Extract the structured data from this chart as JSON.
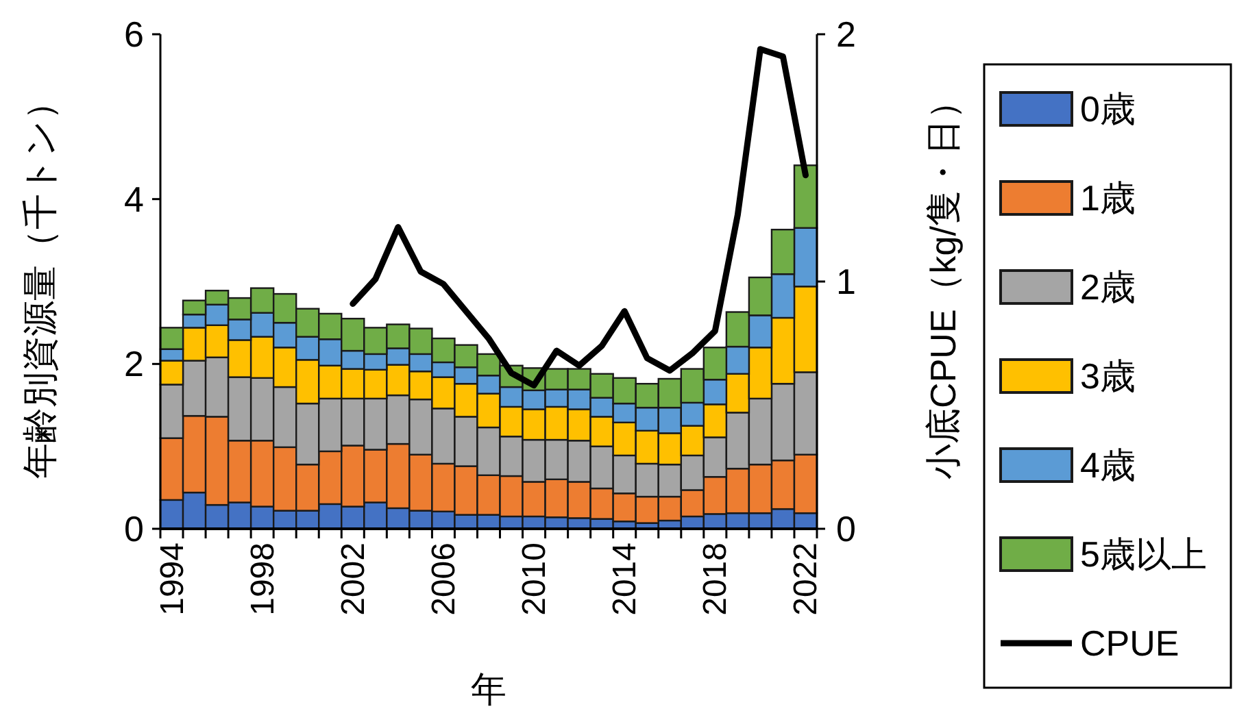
{
  "chart_data": {
    "type": "bar",
    "stacked": true,
    "xlabel": "年",
    "ylabel": "年齢別資源量（千トン）",
    "y2label": "小底CPUE（kg/隻・日）",
    "categories": [
      "1994",
      null,
      null,
      null,
      "1998",
      null,
      null,
      null,
      "2002",
      null,
      null,
      null,
      "2006",
      null,
      null,
      null,
      "2010",
      null,
      null,
      null,
      "2014",
      null,
      null,
      null,
      "2018",
      null,
      null,
      null,
      "2022"
    ],
    "series": [
      {
        "name": "0歳",
        "color": "#4472c4",
        "values": [
          0.35,
          0.44,
          0.29,
          0.32,
          0.27,
          0.22,
          0.22,
          0.3,
          0.27,
          0.32,
          0.25,
          0.22,
          0.21,
          0.17,
          0.17,
          0.15,
          0.15,
          0.14,
          0.13,
          0.12,
          0.09,
          0.07,
          0.1,
          0.15,
          0.18,
          0.19,
          0.19,
          0.24,
          0.19
        ]
      },
      {
        "name": "1歳",
        "color": "#ed7d31",
        "values": [
          0.75,
          0.93,
          1.07,
          0.75,
          0.8,
          0.77,
          0.56,
          0.64,
          0.74,
          0.64,
          0.78,
          0.68,
          0.58,
          0.59,
          0.48,
          0.49,
          0.42,
          0.46,
          0.44,
          0.37,
          0.34,
          0.32,
          0.29,
          0.32,
          0.45,
          0.54,
          0.59,
          0.59,
          0.71
        ]
      },
      {
        "name": "2歳",
        "color": "#a5a5a5",
        "values": [
          0.65,
          0.67,
          0.72,
          0.77,
          0.76,
          0.73,
          0.74,
          0.64,
          0.57,
          0.62,
          0.59,
          0.67,
          0.67,
          0.6,
          0.58,
          0.48,
          0.51,
          0.48,
          0.5,
          0.51,
          0.46,
          0.4,
          0.39,
          0.42,
          0.48,
          0.68,
          0.8,
          0.93,
          1.0
        ]
      },
      {
        "name": "3歳",
        "color": "#ffc000",
        "values": [
          0.29,
          0.4,
          0.39,
          0.45,
          0.5,
          0.48,
          0.53,
          0.4,
          0.36,
          0.35,
          0.37,
          0.34,
          0.38,
          0.4,
          0.41,
          0.36,
          0.37,
          0.4,
          0.38,
          0.36,
          0.4,
          0.4,
          0.38,
          0.36,
          0.4,
          0.47,
          0.62,
          0.8,
          1.04
        ]
      },
      {
        "name": "4歳",
        "color": "#5b9bd5",
        "values": [
          0.14,
          0.16,
          0.25,
          0.25,
          0.29,
          0.3,
          0.28,
          0.32,
          0.22,
          0.19,
          0.2,
          0.21,
          0.18,
          0.2,
          0.22,
          0.24,
          0.23,
          0.21,
          0.24,
          0.23,
          0.23,
          0.28,
          0.31,
          0.28,
          0.3,
          0.33,
          0.39,
          0.53,
          0.71
        ]
      },
      {
        "name": "5歳以上",
        "color": "#70ad47",
        "values": [
          0.26,
          0.17,
          0.17,
          0.26,
          0.3,
          0.35,
          0.34,
          0.31,
          0.39,
          0.32,
          0.29,
          0.31,
          0.29,
          0.27,
          0.26,
          0.26,
          0.27,
          0.25,
          0.25,
          0.29,
          0.31,
          0.29,
          0.35,
          0.41,
          0.39,
          0.42,
          0.46,
          0.54,
          0.76
        ]
      },
      {
        "name": "CPUE",
        "type": "line",
        "axis": "y2",
        "color": "#000000",
        "values": [
          null,
          null,
          null,
          null,
          null,
          null,
          null,
          null,
          0.91,
          1.01,
          1.22,
          1.04,
          0.99,
          0.88,
          0.77,
          0.63,
          0.58,
          0.72,
          0.66,
          0.74,
          0.88,
          0.69,
          0.64,
          0.71,
          0.8,
          1.27,
          1.94,
          1.91,
          1.43
        ]
      }
    ],
    "ylim": [
      0,
      6
    ],
    "yticks": [
      0,
      2,
      4,
      6
    ],
    "y2lim": [
      0,
      2
    ],
    "y2ticks": [
      0,
      1,
      2
    ],
    "grid": false,
    "legend": "right"
  }
}
